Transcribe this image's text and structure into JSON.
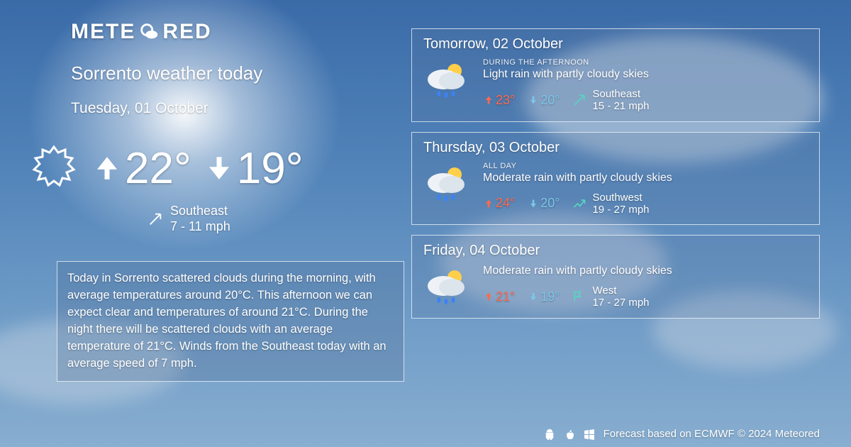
{
  "brand": {
    "name_left": "METE",
    "name_right": "RED"
  },
  "colors": {
    "text": "#ffffff",
    "hi": "#ff6a4d",
    "lo": "#7cc6e8",
    "wind_arrow": "#56d6c0",
    "card_border": "rgba(255,255,255,0.7)",
    "card_bg": "rgba(90,120,160,0.22)"
  },
  "today": {
    "title": "Sorrento weather today",
    "date": "Tuesday, 01 October",
    "hi": "22°",
    "lo": "19°",
    "wind_dir": "Southeast",
    "wind_speed": "7 - 11 mph",
    "summary": "Today in Sorrento scattered clouds during the morning, with average temperatures around 20°C. This afternoon we can expect clear and temperatures of around 21°C. During the night there will be scattered clouds with an average temperature of 21°C. Winds from the Southeast today with an average speed of 7 mph."
  },
  "forecast": [
    {
      "date": "Tomorrow, 02 October",
      "period": "DURING THE AFTERNOON",
      "desc": "Light rain with partly cloudy skies",
      "hi": "23°",
      "lo": "20°",
      "wind_dir": "Southeast",
      "wind_speed": "15 - 21 mph",
      "wind_icon": "diag"
    },
    {
      "date": "Thursday, 03 October",
      "period": "ALL DAY",
      "desc": "Moderate rain with partly cloudy skies",
      "hi": "24°",
      "lo": "20°",
      "wind_dir": "Southwest",
      "wind_speed": "19 - 27 mph",
      "wind_icon": "zig"
    },
    {
      "date": "Friday, 04 October",
      "period": "",
      "desc": "Moderate rain with partly cloudy skies",
      "hi": "21°",
      "lo": "19°",
      "wind_dir": "West",
      "wind_speed": "17 - 27 mph",
      "wind_icon": "flag"
    }
  ],
  "footer": {
    "text": "Forecast based on ECMWF © 2024 Meteored"
  }
}
